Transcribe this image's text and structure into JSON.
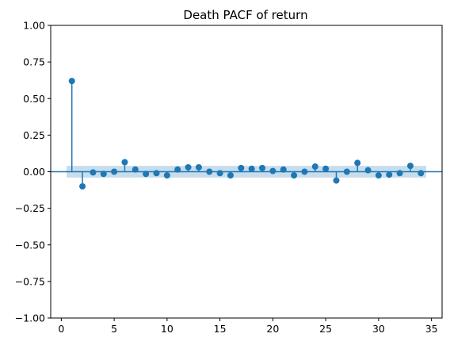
{
  "chart_data": {
    "type": "stem",
    "title": "Death PACF of return",
    "xlabel": "",
    "ylabel": "",
    "xlim": [
      -1,
      36
    ],
    "ylim": [
      -1.0,
      1.0
    ],
    "x_ticks": [
      0,
      5,
      10,
      15,
      20,
      25,
      30,
      35
    ],
    "x_tick_labels": [
      "0",
      "5",
      "10",
      "15",
      "20",
      "25",
      "30",
      "35"
    ],
    "y_ticks": [
      1.0,
      0.75,
      0.5,
      0.25,
      0.0,
      -0.25,
      -0.5,
      -0.75,
      -1.0
    ],
    "y_tick_labels": [
      "1.00",
      "0.75",
      "0.50",
      "0.25",
      "0.00",
      "−0.25",
      "−0.50",
      "−0.75",
      "−1.00"
    ],
    "confidence_band": {
      "x_range": [
        0.5,
        34.5
      ],
      "lower": -0.04,
      "upper": 0.04
    },
    "grid": false,
    "series": [
      {
        "x": [
          1,
          2,
          3,
          4,
          5,
          6,
          7,
          8,
          9,
          10,
          11,
          12,
          13,
          14,
          15,
          16,
          17,
          18,
          19,
          20,
          21,
          22,
          23,
          24,
          25,
          26,
          27,
          28,
          29,
          30,
          31,
          32,
          33,
          34
        ],
        "values": [
          0.62,
          -0.1,
          -0.005,
          -0.015,
          0.0,
          0.065,
          0.015,
          -0.015,
          -0.01,
          -0.025,
          0.015,
          0.03,
          0.03,
          0.0,
          -0.01,
          -0.025,
          0.025,
          0.02,
          0.025,
          0.005,
          0.015,
          -0.025,
          0.0,
          0.035,
          0.02,
          -0.06,
          0.0,
          0.06,
          0.01,
          -0.025,
          -0.02,
          -0.01,
          0.04,
          -0.01
        ]
      }
    ],
    "colors": {
      "series": "#1f77b4",
      "band": "#1f77b4"
    }
  }
}
